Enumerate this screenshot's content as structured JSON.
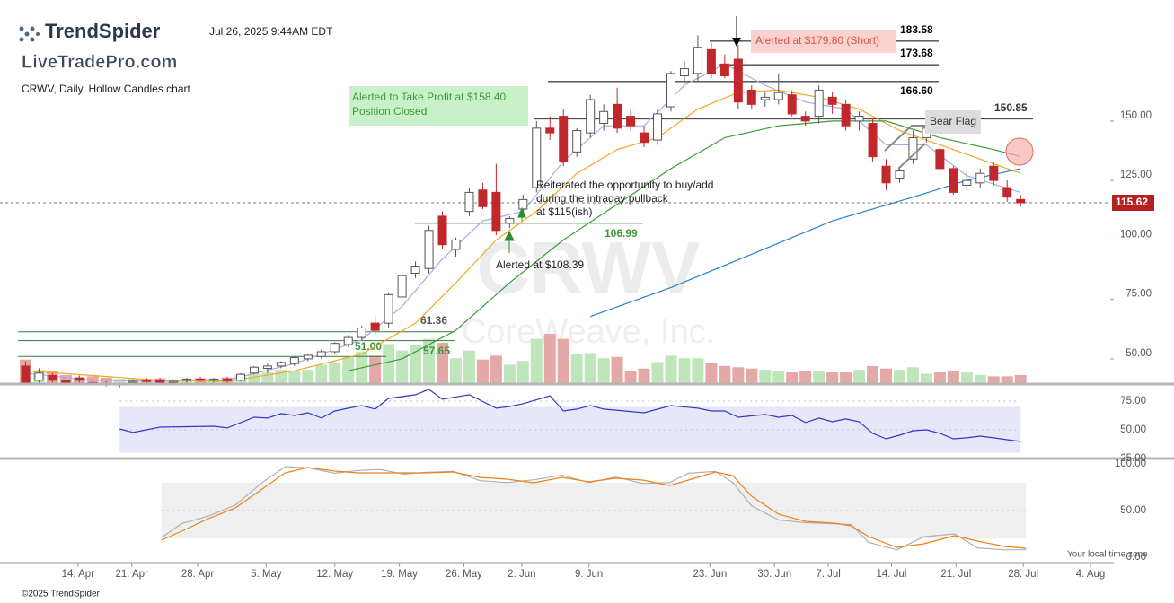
{
  "header": {
    "brand": "TrendSpider",
    "timestamp": "Jul 26, 2025 9:44AM EDT",
    "watermark_brand": "LiveTradePro.com",
    "chart_label": "CRWV, Daily, Hollow Candles chart"
  },
  "footer": {
    "copyright": "©2025 TrendSpider",
    "timezone": "Your local time zone"
  },
  "chart_data": [
    {
      "type": "candlestick",
      "watermark_title": "CRWV",
      "watermark_subtitle": "CoreWeave, Inc.",
      "x": [
        0,
        1,
        2,
        3,
        4,
        5,
        6,
        7,
        8,
        9,
        10,
        11,
        12,
        13,
        14,
        15,
        16,
        17,
        18,
        19,
        20,
        21,
        22,
        23,
        24,
        25,
        26,
        27,
        28,
        29,
        30,
        31,
        32,
        33,
        34,
        35,
        36,
        37,
        38,
        39,
        40,
        41,
        42,
        43,
        44,
        45,
        46,
        47,
        48,
        49,
        50,
        51,
        52,
        53,
        54,
        55,
        56,
        57,
        58,
        59,
        60,
        61,
        62,
        63,
        64,
        65,
        66,
        67,
        68,
        69,
        70,
        71,
        72,
        73,
        74
      ],
      "open": [
        47,
        41,
        43,
        41,
        42,
        40,
        39.5,
        39,
        40,
        41,
        41,
        40,
        41,
        41.5,
        41,
        41.5,
        41,
        44,
        46,
        47,
        48,
        50,
        51,
        53,
        56,
        59,
        65,
        65,
        76,
        86,
        88,
        110,
        96,
        112,
        121,
        120,
        107,
        113,
        122,
        147,
        152,
        137,
        145,
        149,
        157,
        152,
        145,
        142,
        156,
        169,
        170,
        180,
        174,
        176,
        163,
        159,
        159,
        161,
        152,
        152,
        160,
        157,
        150,
        149,
        131,
        126,
        134,
        143,
        138,
        130,
        123,
        124,
        131,
        122,
        117
      ],
      "high": [
        49,
        46,
        44,
        42,
        43,
        41,
        40.5,
        40,
        41,
        42,
        42,
        41,
        42,
        42.5,
        42,
        42.5,
        44,
        47,
        48,
        49,
        51,
        52,
        54,
        57,
        60,
        64,
        68,
        78,
        87,
        91,
        106,
        112,
        101,
        122,
        124,
        132,
        110,
        119,
        150,
        152,
        155,
        147,
        161,
        157,
        164,
        155,
        148,
        155,
        171,
        175,
        186,
        183,
        178,
        182,
        165,
        162,
        170,
        163,
        154,
        165,
        162,
        159,
        154,
        151,
        134,
        130,
        146,
        149,
        140,
        131,
        129,
        130,
        133,
        125,
        119
      ],
      "low": [
        39,
        40,
        40,
        39,
        40,
        39,
        38.5,
        38,
        39,
        40,
        39.5,
        39,
        40,
        40.5,
        40,
        40,
        40.5,
        43.5,
        44,
        46,
        47,
        49,
        50,
        52,
        55,
        58,
        60,
        63,
        74,
        84,
        86,
        96,
        93,
        110,
        113,
        102,
        105,
        111,
        120,
        142,
        131,
        135,
        143,
        146,
        145,
        146,
        139,
        140,
        154,
        166,
        167,
        168,
        168,
        155,
        155,
        156,
        157,
        152,
        148,
        149,
        153,
        146,
        146,
        133,
        121,
        124,
        132,
        141,
        128,
        119,
        121,
        122,
        123,
        116,
        114
      ],
      "close": [
        40,
        44,
        41,
        40,
        41,
        39.5,
        39,
        39.5,
        40.5,
        40.5,
        40,
        40.5,
        41.5,
        41,
        41.5,
        40.8,
        43.5,
        46.5,
        47,
        48.5,
        50.5,
        51.5,
        53,
        56.5,
        59,
        63,
        62,
        77,
        85,
        89,
        104,
        98,
        100,
        120,
        114,
        104,
        109,
        117,
        147,
        145,
        133,
        146,
        159,
        154,
        147,
        148,
        141,
        153,
        170,
        172,
        181,
        170,
        169,
        158,
        157,
        160,
        162,
        153,
        150,
        163,
        157,
        148,
        152,
        135,
        124,
        129,
        143,
        147,
        130,
        120,
        125,
        128,
        125,
        118,
        115.62
      ],
      "volume": [
        38,
        22,
        20,
        14,
        10,
        12,
        10,
        8,
        9,
        8,
        9,
        7,
        8,
        9,
        8,
        10,
        14,
        16,
        18,
        22,
        20,
        22,
        30,
        34,
        42,
        50,
        44,
        62,
        52,
        60,
        70,
        64,
        40,
        52,
        38,
        44,
        30,
        36,
        70,
        78,
        70,
        46,
        48,
        40,
        42,
        20,
        24,
        34,
        44,
        40,
        40,
        32,
        28,
        26,
        24,
        22,
        20,
        18,
        20,
        20,
        18,
        18,
        22,
        28,
        24,
        22,
        26,
        16,
        18,
        20,
        18,
        14,
        12,
        12,
        14
      ],
      "vlim": [
        0,
        139
      ],
      "up_color": "#555555",
      "down_color": "#c0282c",
      "volume_up_color": "#bfe6bb",
      "volume_down_color": "#e4a8a6",
      "xlim": [
        -1.9,
        80.6
      ],
      "xticks": [
        {
          "value": 3.9,
          "label": "14. Apr"
        },
        {
          "value": 7.9,
          "label": "21. Apr"
        },
        {
          "value": 12.8,
          "label": "28. Apr"
        },
        {
          "value": 17.9,
          "label": "5. May"
        },
        {
          "value": 23,
          "label": "12. May"
        },
        {
          "value": 27.8,
          "label": "19. May"
        },
        {
          "value": 32.6,
          "label": "26. May"
        },
        {
          "value": 36.9,
          "label": "2. Jun"
        },
        {
          "value": 41.9,
          "label": "9. Jun"
        },
        {
          "value": 50.9,
          "label": "23. Jun"
        },
        {
          "value": 55.7,
          "label": "30. Jun"
        },
        {
          "value": 59.7,
          "label": "7. Jul"
        },
        {
          "value": 64.4,
          "label": "14. Jul"
        },
        {
          "value": 69.2,
          "label": "21. Jul"
        },
        {
          "value": 74.2,
          "label": "28. Jul"
        },
        {
          "value": 79.2,
          "label": "4. Aug"
        }
      ],
      "ylim": [
        39.4,
        200.9
      ],
      "yticks": [
        {
          "value": 150,
          "label": "150.00"
        },
        {
          "value": 125,
          "label": "125.00"
        },
        {
          "value": 100,
          "label": "100.00"
        },
        {
          "value": 75,
          "label": "75.00"
        },
        {
          "value": 50,
          "label": "50.00"
        }
      ],
      "last_price": 115.62,
      "levels": [
        183.58,
        173.68,
        {
          "value": 166.6,
          "label": "166.60"
        },
        150.85,
        106.99,
        61.36,
        57.65,
        {
          "value": 51,
          "label": "51.00"
        }
      ],
      "moving_averages": [
        {
          "color": "#a9a9e8",
          "x": [
            0,
            5,
            10,
            15,
            20,
            25,
            28,
            31,
            34,
            37,
            40,
            43,
            46,
            49,
            52,
            55,
            58,
            61,
            64,
            67,
            70,
            74
          ],
          "values": [
            44,
            41,
            40.5,
            41,
            48,
            58,
            72,
            92,
            108,
            112,
            133,
            148,
            148,
            165,
            174,
            165,
            158,
            155,
            140,
            140,
            127,
            120
          ]
        },
        {
          "color": "#f5a623",
          "x": [
            0,
            5,
            10,
            15,
            20,
            25,
            29,
            32,
            35,
            38,
            41,
            44,
            47,
            50,
            53,
            56,
            59,
            62,
            65,
            68,
            71,
            74
          ],
          "values": [
            45,
            43,
            41,
            40.5,
            45,
            52,
            65,
            82,
            100,
            112,
            128,
            138,
            143,
            155,
            162,
            163,
            160,
            155,
            146,
            140,
            134,
            128
          ]
        },
        {
          "color": "#3a9b3a",
          "x": [
            24,
            28,
            32,
            36,
            40,
            44,
            48,
            52,
            56,
            60,
            64,
            68,
            72,
            74
          ],
          "values": [
            45,
            50,
            62,
            82,
            100,
            115,
            130,
            143,
            148,
            150,
            150,
            143,
            138,
            135
          ]
        },
        {
          "color": "#2a7fd4",
          "x": [
            42,
            48,
            54,
            60,
            66,
            70,
            74
          ],
          "values": [
            67.8,
            80,
            94,
            108,
            118,
            125,
            130
          ]
        }
      ],
      "annotations": {
        "short_alert": "Alerted at $179.80 (Short)",
        "take_profit": [
          "Alerted to Take Profit at $158.40",
          "Position Closed"
        ],
        "reiterate": [
          "Reiterated the opportunity to buy/add",
          "during the intraday pullback",
          "at $115(ish)"
        ],
        "buy_alert": "Alerted at $108.39",
        "pattern": "Bear Flag"
      }
    },
    {
      "type": "line",
      "ylim": [
        24.6,
        86.3
      ],
      "yticks": [
        {
          "value": 75,
          "label": "75.00"
        },
        {
          "value": 50,
          "label": "50.00"
        },
        {
          "value": 25,
          "label": "25.00"
        }
      ],
      "band": [
        30,
        70
      ],
      "band_color": "#e6e8fa",
      "series": [
        {
          "color": "#3535c8",
          "x": [
            7,
            8,
            10,
            14,
            15,
            17,
            18,
            19,
            20,
            21,
            22,
            23,
            24,
            25,
            26,
            27,
            29,
            30,
            31,
            33,
            35,
            36,
            37,
            39,
            40,
            41,
            42,
            43,
            46,
            48,
            50,
            51,
            52,
            53,
            55,
            56,
            57,
            58,
            59,
            60,
            61,
            62,
            63,
            64,
            65,
            66,
            67,
            68,
            69,
            70,
            71,
            72,
            73,
            74
          ],
          "values": [
            50.8,
            47.7,
            52.3,
            53.1,
            51.6,
            60.9,
            60.2,
            64.1,
            62.5,
            64.8,
            60.2,
            66.4,
            68.8,
            71.1,
            68,
            77.3,
            80.5,
            85.2,
            76.6,
            80.5,
            68.8,
            70.3,
            72.7,
            79.7,
            66.4,
            68,
            71.1,
            68,
            64.8,
            71.1,
            68.8,
            66.4,
            66.4,
            60.9,
            63.3,
            60.9,
            62.5,
            56.3,
            60.2,
            57,
            59.4,
            57,
            46.9,
            42.2,
            45.3,
            49.2,
            50,
            46.9,
            42.2,
            43,
            44.5,
            43,
            41.4,
            39.8
          ]
        }
      ]
    },
    {
      "type": "line",
      "ylim": [
        0,
        100
      ],
      "yticks": [
        {
          "value": 100,
          "label": "100.00"
        },
        {
          "value": 50,
          "label": "50.00"
        },
        {
          "value": 0,
          "label": "0.00"
        }
      ],
      "band": [
        20,
        80
      ],
      "band_color": "#efefef",
      "series": [
        {
          "color": "#b0b0b0",
          "x": [
            10.1,
            11.6,
            13.6,
            15.6,
            17.6,
            19.3,
            21,
            23,
            24.7,
            26.4,
            28.1,
            29.8,
            31.8,
            33.8,
            35.8,
            37.8,
            39.9,
            41.9,
            43.9,
            45.9,
            47.9,
            49.3,
            51.3,
            52.6,
            54,
            56,
            58,
            60.1,
            61.4,
            62.7,
            64.8,
            66.8,
            69.1,
            70.8,
            72.8,
            74.4
          ],
          "values": [
            21,
            36,
            44,
            56,
            80,
            97,
            96,
            90,
            93,
            94,
            89,
            91,
            92,
            82,
            80,
            83,
            88,
            80,
            86,
            79,
            80,
            90,
            92,
            80,
            55,
            40,
            37,
            36,
            35,
            16,
            8,
            22,
            25,
            10,
            8,
            8
          ]
        },
        {
          "color": "#f07f1a",
          "x": [
            10.1,
            11.6,
            13.6,
            15.6,
            17.6,
            19.3,
            21,
            23,
            24.7,
            26.4,
            28.1,
            29.8,
            31.8,
            33.8,
            35.8,
            37.8,
            39.9,
            41.9,
            43.9,
            45.9,
            47.9,
            49.3,
            51.3,
            52.6,
            54,
            56,
            58,
            60.1,
            61.4,
            62.7,
            64.8,
            66.8,
            69.1,
            70.8,
            72.8,
            74.4
          ],
          "values": [
            18.3,
            27.9,
            41.3,
            52.9,
            73.1,
            90.4,
            96.2,
            92.3,
            90.4,
            90.4,
            90.4,
            90.4,
            91.3,
            85.6,
            83.7,
            79.8,
            85.6,
            80.8,
            84.6,
            82.7,
            76.9,
            82.7,
            91.3,
            87.5,
            65.4,
            46.2,
            38.5,
            36.5,
            33.7,
            22.1,
            10.6,
            14.4,
            23.1,
            17.3,
            11.5,
            9.6
          ]
        }
      ]
    }
  ]
}
